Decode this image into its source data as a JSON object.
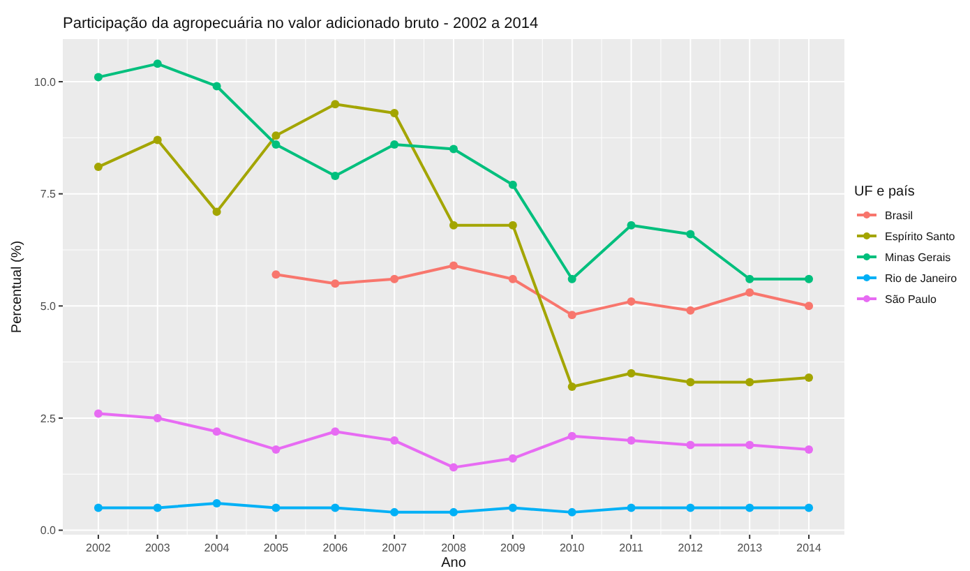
{
  "chart_data": {
    "type": "line",
    "title": "Participação da agropecuária no valor adicionado bruto - 2002 a 2014",
    "xlabel": "Ano",
    "ylabel": "Percentual (%)",
    "legend_title": "UF e país",
    "x": [
      2002,
      2003,
      2004,
      2005,
      2006,
      2007,
      2008,
      2009,
      2010,
      2011,
      2012,
      2013,
      2014
    ],
    "xlim": [
      2001.4,
      2014.6
    ],
    "xticks": [
      2002,
      2003,
      2004,
      2005,
      2006,
      2007,
      2008,
      2009,
      2010,
      2011,
      2012,
      2013,
      2014
    ],
    "ylim": [
      -0.1,
      10.95
    ],
    "yticks": [
      {
        "value": 0,
        "label": "0.0"
      },
      {
        "value": 2.5,
        "label": "2.5"
      },
      {
        "value": 5,
        "label": "5.0"
      },
      {
        "value": 7.5,
        "label": "7.5"
      },
      {
        "value": 10,
        "label": "10.0"
      }
    ],
    "grid": true,
    "legend": "right",
    "marker": "circle",
    "line_style": "solid",
    "series": [
      {
        "name": "Brasil",
        "color": "#f8766d",
        "values": [
          null,
          null,
          null,
          5.7,
          5.5,
          5.6,
          5.9,
          5.6,
          4.8,
          5.1,
          4.9,
          5.3,
          5.0
        ]
      },
      {
        "name": "Espírito Santo",
        "color": "#a3a500",
        "values": [
          8.1,
          8.7,
          7.1,
          8.8,
          9.5,
          9.3,
          6.8,
          6.8,
          3.2,
          3.5,
          3.3,
          3.3,
          3.4
        ]
      },
      {
        "name": "Minas Gerais",
        "color": "#00bf7d",
        "values": [
          10.1,
          10.4,
          9.9,
          8.6,
          7.9,
          8.6,
          8.5,
          7.7,
          5.6,
          6.8,
          6.6,
          5.6,
          5.6
        ]
      },
      {
        "name": "Rio de Janeiro",
        "color": "#00b0f6",
        "values": [
          0.5,
          0.5,
          0.6,
          0.5,
          0.5,
          0.4,
          0.4,
          0.5,
          0.4,
          0.5,
          0.5,
          0.5,
          0.5
        ]
      },
      {
        "name": "São Paulo",
        "color": "#e76bf3",
        "values": [
          2.6,
          2.5,
          2.2,
          1.8,
          2.2,
          2.0,
          1.4,
          1.6,
          2.1,
          2.0,
          1.9,
          1.9,
          1.8
        ]
      }
    ]
  }
}
